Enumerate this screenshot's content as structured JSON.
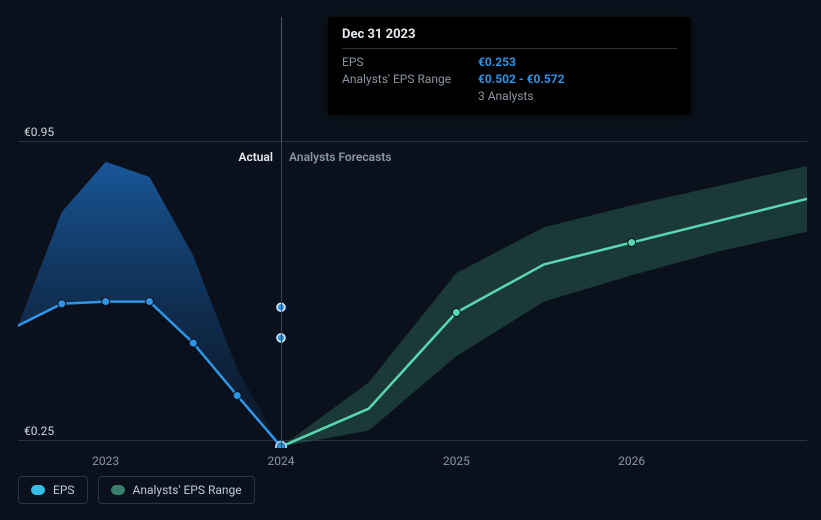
{
  "chart": {
    "type": "line",
    "background_color": "#0a111c",
    "grid_color": "#27313f",
    "divider_color": "#3a4656",
    "text_color_muted": "#8c96a3",
    "text_color_strong": "#e6ebf1",
    "accent_color": "#2f95e6",
    "forecast_line_color": "#5ad6b0",
    "actual_line_color": "#2f95e6",
    "actual_area_low": "#0f2a4a",
    "actual_area_high": "#1a5fa8",
    "forecast_area_color": "#2f6b5a",
    "line_width": 2.5,
    "marker_radius": 4,
    "ylim": [
      0.25,
      0.95
    ],
    "ylabel_top": "€0.95",
    "ylabel_bot": "€0.25",
    "section_actual_label": "Actual",
    "section_forecast_label": "Analysts Forecasts",
    "xticks": [
      "2023",
      "2024",
      "2025",
      "2026"
    ],
    "divider_x": 2024.0,
    "cursor_x": 2024.0,
    "actual_series": {
      "x": [
        2022.5,
        2022.75,
        2023.0,
        2023.25,
        2023.5,
        2023.75,
        2024.0
      ],
      "y": [
        0.53,
        0.58,
        0.585,
        0.585,
        0.49,
        0.37,
        0.253
      ],
      "markers": [
        false,
        true,
        true,
        true,
        true,
        true,
        true
      ]
    },
    "actual_envelope_upper": {
      "x": [
        2022.5,
        2022.75,
        2023.0,
        2023.25,
        2023.5,
        2023.75,
        2024.0
      ],
      "y": [
        0.53,
        0.79,
        0.905,
        0.87,
        0.69,
        0.43,
        0.253
      ]
    },
    "forecast_series": {
      "x": [
        2024.0,
        2024.5,
        2025.0,
        2025.5,
        2026.0,
        2026.5,
        2027.0
      ],
      "y": [
        0.253,
        0.34,
        0.56,
        0.67,
        0.72,
        0.77,
        0.82
      ],
      "markers": [
        false,
        false,
        true,
        false,
        true,
        false,
        false
      ]
    },
    "forecast_envelope": {
      "x": [
        2024.0,
        2024.5,
        2025.0,
        2025.5,
        2026.0,
        2026.5,
        2027.0
      ],
      "low": [
        0.253,
        0.29,
        0.46,
        0.585,
        0.645,
        0.7,
        0.745
      ],
      "high": [
        0.253,
        0.4,
        0.65,
        0.755,
        0.805,
        0.85,
        0.895
      ]
    },
    "cursor_points": [
      {
        "x": 2024.0,
        "y": 0.502
      },
      {
        "x": 2024.0,
        "y": 0.572
      }
    ]
  },
  "tooltip": {
    "date": "Dec 31 2023",
    "rows": [
      {
        "k": "EPS",
        "v": "€0.253"
      },
      {
        "k": "Analysts' EPS Range",
        "v": "€0.502 - €0.572"
      }
    ],
    "sub": "3 Analysts"
  },
  "legend": [
    {
      "label": "EPS",
      "swatch": "#35c0e6"
    },
    {
      "label": "Analysts' EPS Range",
      "swatch": "#3a7e6e"
    }
  ]
}
